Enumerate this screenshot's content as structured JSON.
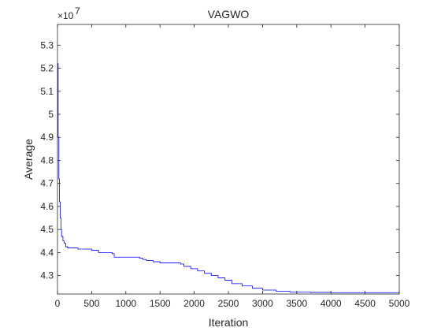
{
  "chart_data": {
    "type": "line",
    "title": "VAGWO",
    "xlabel": "Iteration",
    "ylabel": "Average",
    "y_multiplier": "×10",
    "y_exponent": "7",
    "xlim": [
      0,
      5000
    ],
    "ylim": [
      4.22,
      5.39
    ],
    "xticks": [
      0,
      500,
      1000,
      1500,
      2000,
      2500,
      3000,
      3500,
      4000,
      4500,
      5000
    ],
    "xtick_labels": [
      "0",
      "500",
      "1000",
      "1500",
      "2000",
      "2500",
      "3000",
      "3500",
      "4000",
      "4500",
      "5000"
    ],
    "yticks": [
      4.3,
      4.4,
      4.5,
      4.6,
      4.7,
      4.8,
      4.9,
      5.0,
      5.1,
      5.2,
      5.3
    ],
    "ytick_labels": [
      "4.3",
      "4.4",
      "4.5",
      "4.6",
      "4.7",
      "4.8",
      "4.9",
      "5",
      "5.1",
      "5.2",
      "5.3"
    ],
    "grid": false,
    "series_color": "#0000ff",
    "series": [
      {
        "x": [
          0,
          10,
          20,
          30,
          40,
          50,
          60,
          80,
          100,
          120,
          150,
          300,
          500,
          600,
          800,
          830,
          1200,
          1250,
          1300,
          1400,
          1500,
          1800,
          1850,
          1950,
          2050,
          2150,
          2250,
          2350,
          2450,
          2550,
          2700,
          2850,
          3000,
          3200,
          3400,
          3700,
          4000,
          5000
        ],
        "y": [
          5.22,
          4.9,
          4.72,
          4.62,
          4.55,
          4.5,
          4.47,
          4.45,
          4.44,
          4.425,
          4.42,
          4.415,
          4.41,
          4.4,
          4.395,
          4.38,
          4.375,
          4.37,
          4.365,
          4.36,
          4.355,
          4.35,
          4.34,
          4.33,
          4.32,
          4.31,
          4.3,
          4.29,
          4.28,
          4.265,
          4.255,
          4.245,
          4.237,
          4.232,
          4.229,
          4.227,
          4.226,
          4.226
        ]
      }
    ]
  }
}
